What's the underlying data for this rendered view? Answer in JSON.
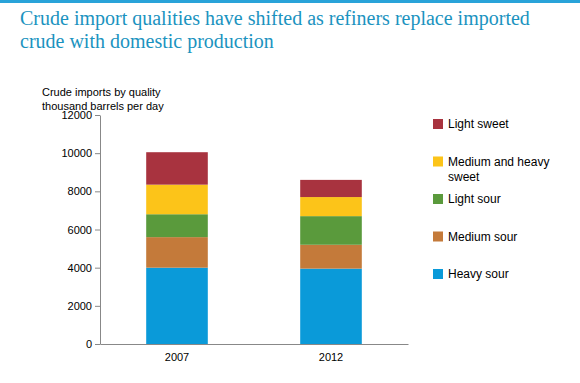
{
  "chart_data": {
    "type": "bar",
    "stacked": true,
    "title": "Crude import qualities have shifted as refiners replace imported crude with domestic production",
    "y_label": [
      "Crude imports by quality",
      "thousand barrels per day"
    ],
    "categories": [
      "2007",
      "2012"
    ],
    "series": [
      {
        "name": "Heavy sour",
        "color": "#0a9ad9",
        "values": [
          4000,
          3950
        ]
      },
      {
        "name": "Medium sour",
        "color": "#c47a3a",
        "values": [
          1600,
          1250
        ]
      },
      {
        "name": "Light sour",
        "color": "#5a9a3c",
        "values": [
          1200,
          1500
        ]
      },
      {
        "name": "Medium and heavy sweet",
        "color": "#fcc419",
        "values": [
          1550,
          1000
        ]
      },
      {
        "name": "Light sweet",
        "color": "#a8333f",
        "values": [
          1700,
          900
        ]
      }
    ],
    "ylim": [
      0,
      12000
    ],
    "yticks": [
      0,
      2000,
      4000,
      6000,
      8000,
      10000,
      12000
    ],
    "legend": "right"
  }
}
